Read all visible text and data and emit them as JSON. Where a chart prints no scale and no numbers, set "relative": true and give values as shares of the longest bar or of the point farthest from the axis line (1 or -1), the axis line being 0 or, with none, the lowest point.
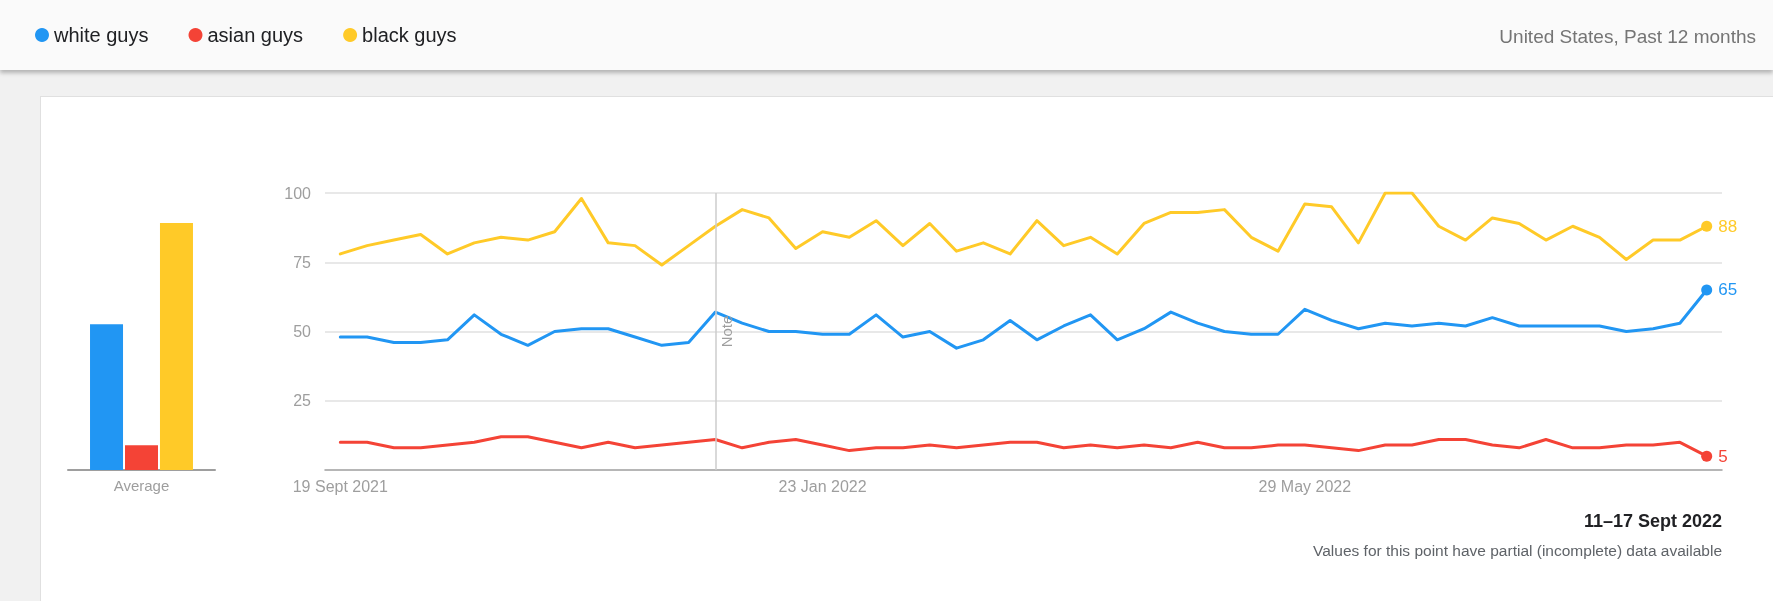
{
  "chart_data": [
    {
      "type": "bar",
      "relative": true,
      "categories": [
        "Average"
      ],
      "legend": false,
      "grid": false,
      "series": [
        {
          "color": "#2196f3",
          "values": [
            0.59
          ]
        },
        {
          "color": "#f44336",
          "values": [
            0.1
          ]
        },
        {
          "color": "#ffca28",
          "values": [
            1
          ]
        }
      ]
    },
    {
      "type": "line",
      "subtitle": "United States, Past 12 months",
      "legend": "top left",
      "grid": "y",
      "x": [
        "2021-09-19",
        "2021-09-26",
        "2021-10-03",
        "2021-10-10",
        "2021-10-17",
        "2021-10-24",
        "2021-10-31",
        "2021-11-07",
        "2021-11-14",
        "2021-11-21",
        "2021-11-28",
        "2021-12-05",
        "2021-12-12",
        "2021-12-19",
        "2021-12-26",
        "2022-01-02",
        "2022-01-09",
        "2022-01-16",
        "2022-01-23",
        "2022-01-30",
        "2022-02-06",
        "2022-02-13",
        "2022-02-20",
        "2022-02-27",
        "2022-03-06",
        "2022-03-13",
        "2022-03-20",
        "2022-03-27",
        "2022-04-03",
        "2022-04-10",
        "2022-04-17",
        "2022-04-24",
        "2022-05-01",
        "2022-05-08",
        "2022-05-15",
        "2022-05-22",
        "2022-05-29",
        "2022-06-05",
        "2022-06-12",
        "2022-06-19",
        "2022-06-26",
        "2022-07-03",
        "2022-07-10",
        "2022-07-17",
        "2022-07-24",
        "2022-07-31",
        "2022-08-07",
        "2022-08-14",
        "2022-08-21",
        "2022-08-28",
        "2022-09-04",
        "2022-09-11"
      ],
      "xlim": [
        "2021-09-15",
        "2022-09-15"
      ],
      "xticks": [
        {
          "value": "2021-09-19",
          "label": "19 Sept 2021"
        },
        {
          "value": "2022-01-23",
          "label": "23 Jan 2022"
        },
        {
          "value": "2022-05-29",
          "label": "29 May 2022"
        }
      ],
      "ylim": [
        0,
        100
      ],
      "yticks": [
        25,
        50,
        75,
        100
      ],
      "ref_lines": [
        {
          "axis": "x",
          "value": "2021-12-26",
          "label": "Note",
          "color": "#cccccc"
        }
      ],
      "annotations": [
        "11–17 Sept 2022",
        "Values for this point have partial (incomplete) data available"
      ],
      "series": [
        {
          "name": "white guys",
          "color": "#2196f3",
          "values": [
            48,
            48,
            46,
            46,
            47,
            56,
            49,
            45,
            50,
            51,
            51,
            48,
            45,
            46,
            57,
            53,
            50,
            50,
            49,
            49,
            56,
            48,
            50,
            44,
            47,
            54,
            47,
            52,
            56,
            47,
            51,
            57,
            53,
            50,
            49,
            49,
            58,
            54,
            51,
            53,
            52,
            53,
            52,
            55,
            52,
            52,
            52,
            52,
            50,
            51,
            53,
            65
          ],
          "value_labels": [
            null,
            null,
            null,
            null,
            null,
            null,
            null,
            null,
            null,
            null,
            null,
            null,
            null,
            null,
            null,
            null,
            null,
            null,
            null,
            null,
            null,
            null,
            null,
            null,
            null,
            null,
            null,
            null,
            null,
            null,
            null,
            null,
            null,
            null,
            null,
            null,
            null,
            null,
            null,
            null,
            null,
            null,
            null,
            null,
            null,
            null,
            null,
            null,
            null,
            null,
            null,
            "65"
          ]
        },
        {
          "name": "asian guys",
          "color": "#f44336",
          "values": [
            10,
            10,
            8,
            8,
            9,
            10,
            12,
            12,
            10,
            8,
            10,
            8,
            9,
            10,
            11,
            8,
            10,
            11,
            9,
            7,
            8,
            8,
            9,
            8,
            9,
            10,
            10,
            8,
            9,
            8,
            9,
            8,
            10,
            8,
            8,
            9,
            9,
            8,
            7,
            9,
            9,
            11,
            11,
            9,
            8,
            11,
            8,
            8,
            9,
            9,
            10,
            5
          ],
          "value_labels": [
            null,
            null,
            null,
            null,
            null,
            null,
            null,
            null,
            null,
            null,
            null,
            null,
            null,
            null,
            null,
            null,
            null,
            null,
            null,
            null,
            null,
            null,
            null,
            null,
            null,
            null,
            null,
            null,
            null,
            null,
            null,
            null,
            null,
            null,
            null,
            null,
            null,
            null,
            null,
            null,
            null,
            null,
            null,
            null,
            null,
            null,
            null,
            null,
            null,
            null,
            null,
            "5"
          ]
        },
        {
          "name": "black guys",
          "color": "#ffca28",
          "values": [
            78,
            81,
            83,
            85,
            78,
            82,
            84,
            83,
            86,
            98,
            82,
            81,
            74,
            81,
            88,
            94,
            91,
            80,
            86,
            84,
            90,
            81,
            89,
            79,
            82,
            78,
            90,
            81,
            84,
            78,
            89,
            93,
            93,
            94,
            84,
            79,
            96,
            95,
            82,
            100,
            100,
            88,
            83,
            91,
            89,
            83,
            88,
            84,
            76,
            83,
            83,
            88
          ],
          "value_labels": [
            null,
            null,
            null,
            null,
            null,
            null,
            null,
            null,
            null,
            null,
            null,
            null,
            null,
            null,
            null,
            null,
            null,
            null,
            null,
            null,
            null,
            null,
            null,
            null,
            null,
            null,
            null,
            null,
            null,
            null,
            null,
            null,
            null,
            null,
            null,
            null,
            null,
            null,
            null,
            null,
            null,
            null,
            null,
            null,
            null,
            null,
            null,
            null,
            null,
            null,
            null,
            "88"
          ]
        }
      ]
    }
  ]
}
